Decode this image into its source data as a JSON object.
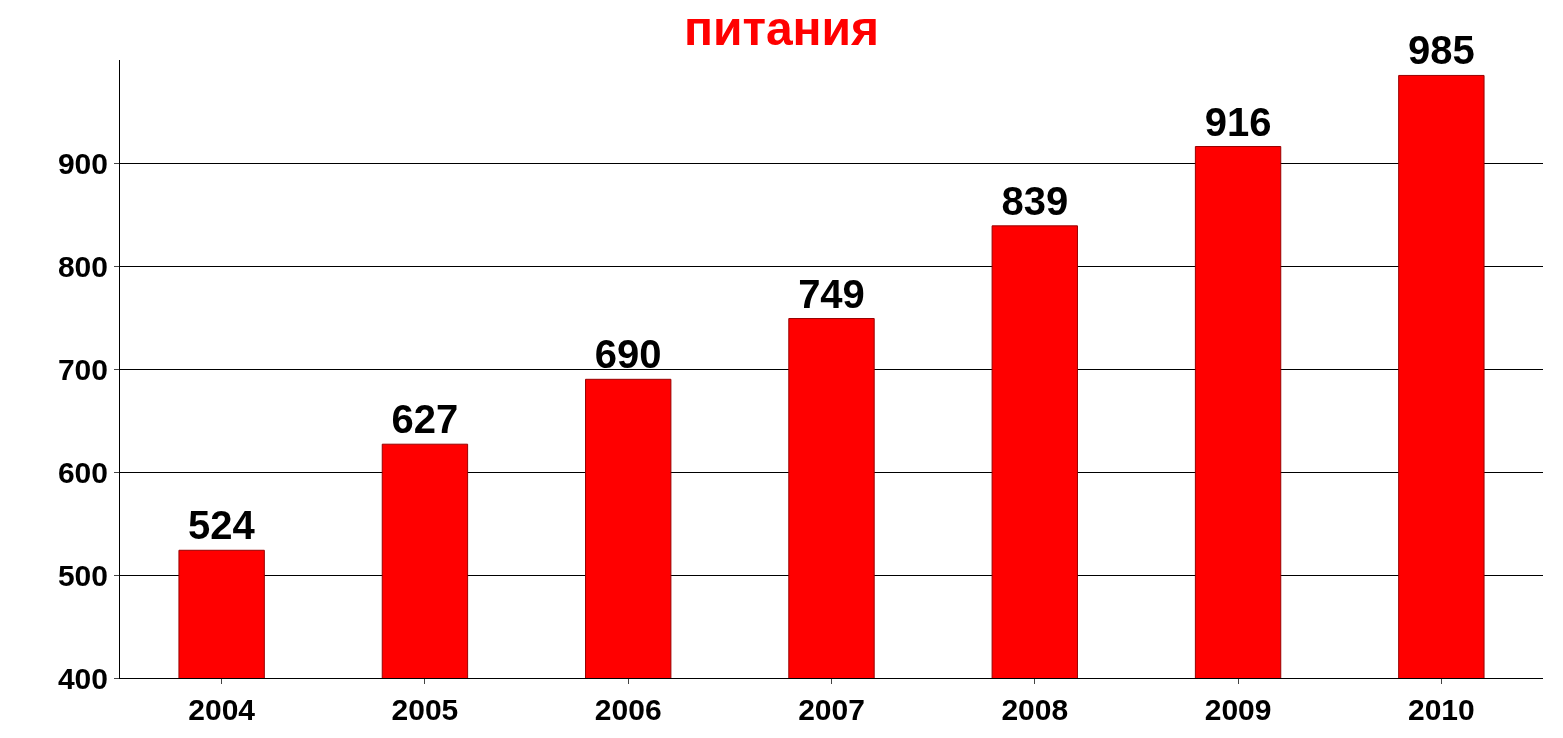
{
  "chart_data": {
    "type": "bar",
    "title": "питания",
    "categories": [
      "2004",
      "2005",
      "2006",
      "2007",
      "2008",
      "2009",
      "2010"
    ],
    "values": [
      524,
      627,
      690,
      749,
      839,
      916,
      985
    ],
    "color": "#ff0000",
    "data_labels": true,
    "ylim": [
      400,
      1000
    ],
    "yticks": [
      400,
      500,
      600,
      700,
      800,
      900
    ],
    "grid": "y"
  }
}
